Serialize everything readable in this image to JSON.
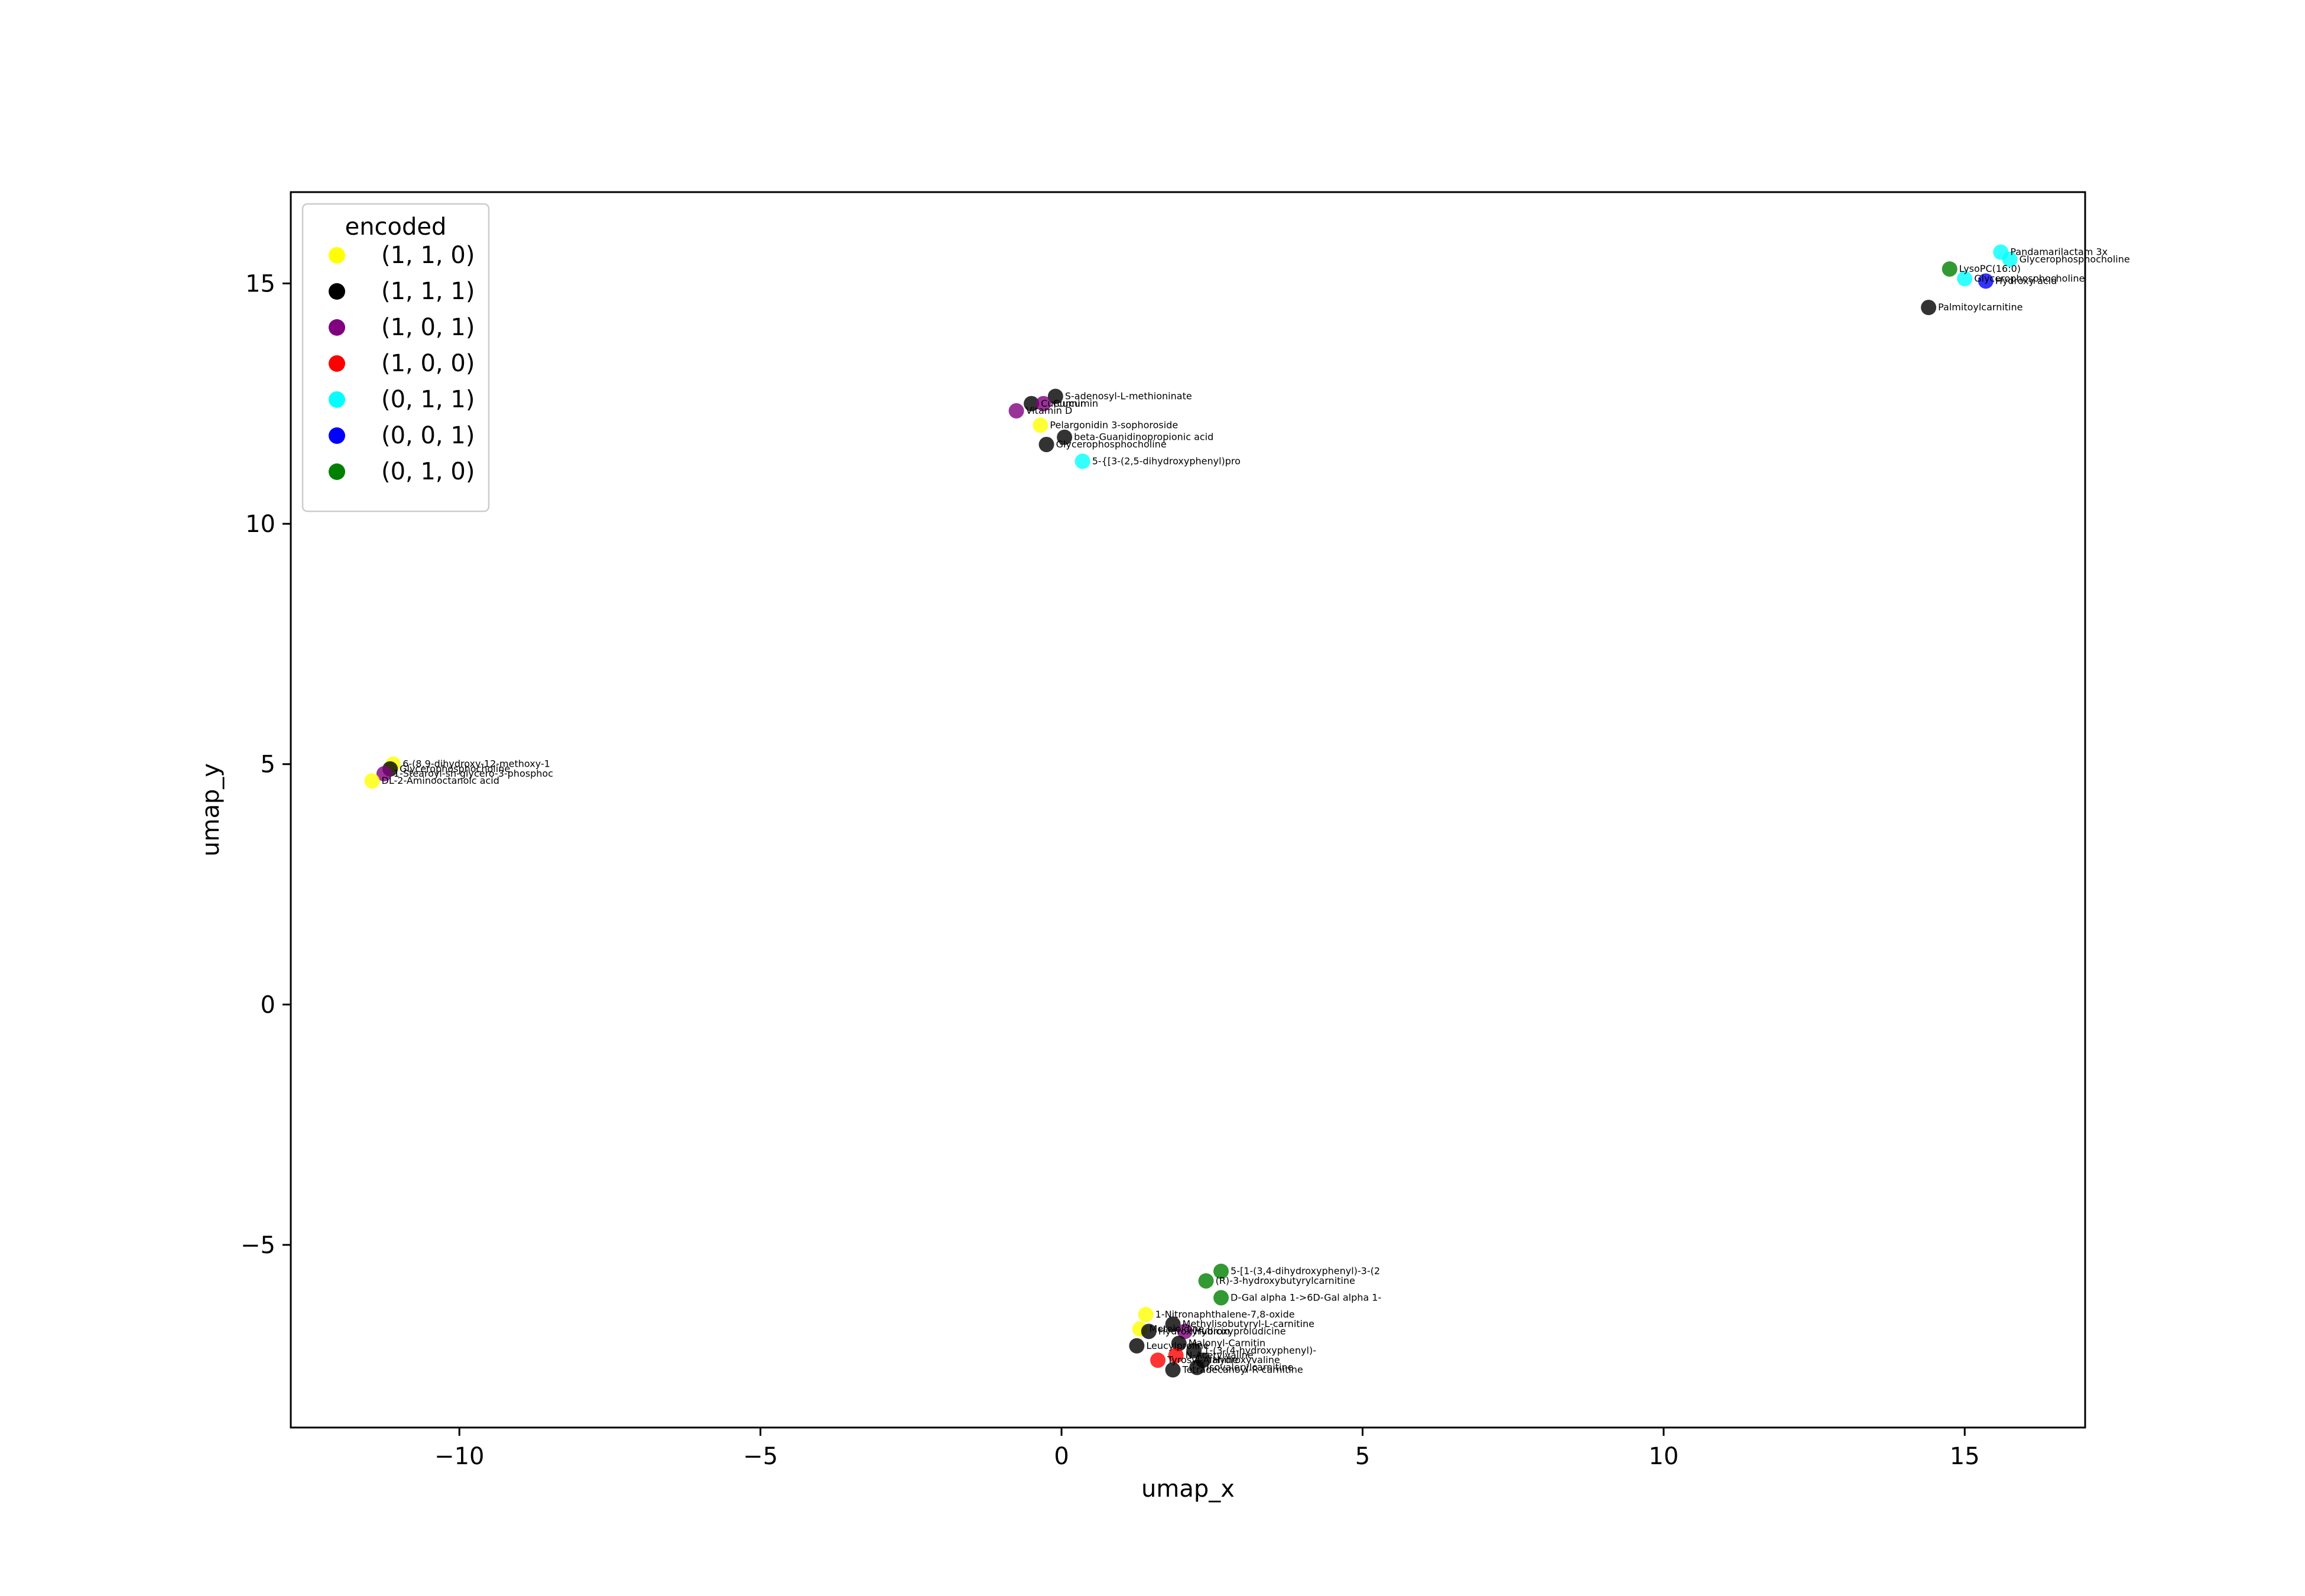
{
  "chart_data": {
    "type": "scatter",
    "title": "",
    "xlabel": "umap_x",
    "ylabel": "umap_y",
    "xlim": [
      -12.8,
      17.0
    ],
    "ylim": [
      -8.8,
      16.9
    ],
    "xticks": [
      -10,
      -5,
      0,
      5,
      10,
      15
    ],
    "yticks": [
      -5,
      0,
      5,
      10,
      15
    ],
    "xtick_labels": [
      "−10",
      "−5",
      "0",
      "5",
      "10",
      "15"
    ],
    "ytick_labels": [
      "−5",
      "0",
      "5",
      "10",
      "15"
    ],
    "grid": false,
    "legend": {
      "title": "encoded",
      "position": "top-left",
      "entries": [
        {
          "label": "(1, 1, 0)",
          "color": "#ffff00"
        },
        {
          "label": "(1, 1, 1)",
          "color": "#000000"
        },
        {
          "label": "(1, 0, 1)",
          "color": "#800080"
        },
        {
          "label": "(1, 0, 0)",
          "color": "#ff0000"
        },
        {
          "label": "(0, 1, 1)",
          "color": "#00ffff"
        },
        {
          "label": "(0, 0, 1)",
          "color": "#0000ff"
        },
        {
          "label": "(0, 1, 0)",
          "color": "#008000"
        }
      ]
    },
    "points": [
      {
        "x": 15.6,
        "y": 15.65,
        "group": "(0, 1, 1)",
        "label": "Pandamarilactam 3x"
      },
      {
        "x": 15.75,
        "y": 15.5,
        "group": "(0, 1, 1)",
        "label": "Glycerophosphocholine"
      },
      {
        "x": 14.75,
        "y": 15.3,
        "group": "(0, 1, 0)",
        "label": "LysoPC(16:0)"
      },
      {
        "x": 15.0,
        "y": 15.1,
        "group": "(0, 1, 1)",
        "label": "Glycerophosphocholine"
      },
      {
        "x": 15.35,
        "y": 15.05,
        "group": "(0, 0, 1)",
        "label": "Hydroxy acid"
      },
      {
        "x": 14.4,
        "y": 14.5,
        "group": "(1, 1, 1)",
        "label": "Palmitoylcarnitine"
      },
      {
        "x": -0.1,
        "y": 12.65,
        "group": "(1, 1, 1)",
        "label": "S-adenosyl-L-methioninate"
      },
      {
        "x": -0.5,
        "y": 12.5,
        "group": "(1, 1, 1)",
        "label": "Curcumin"
      },
      {
        "x": -0.3,
        "y": 12.5,
        "group": "(1, 0, 1)",
        "label": "Curcumin"
      },
      {
        "x": -0.75,
        "y": 12.35,
        "group": "(1, 0, 1)",
        "label": "Vitamin D"
      },
      {
        "x": -0.35,
        "y": 12.05,
        "group": "(1, 1, 0)",
        "label": "Pelargonidin 3-sophoroside"
      },
      {
        "x": 0.05,
        "y": 11.8,
        "group": "(1, 1, 1)",
        "label": "beta-Guanidinopropionic acid"
      },
      {
        "x": -0.25,
        "y": 11.65,
        "group": "(1, 1, 1)",
        "label": "Glycerophosphocholine"
      },
      {
        "x": 0.35,
        "y": 11.3,
        "group": "(0, 1, 1)",
        "label": "5-{[3-(2,5-dihydroxyphenyl)pro"
      },
      {
        "x": -11.1,
        "y": 5.0,
        "group": "(1, 1, 0)",
        "label": "6-(8,9-dihydroxy-12-methoxy-1"
      },
      {
        "x": -11.15,
        "y": 4.9,
        "group": "(1, 1, 1)",
        "label": "Glycerophosphocholine"
      },
      {
        "x": -11.25,
        "y": 4.8,
        "group": "(1, 0, 1)",
        "label": "1-Stearoyl-sn-glycero-3-phosphoc"
      },
      {
        "x": -11.45,
        "y": 4.65,
        "group": "(1, 1, 0)",
        "label": "DL-2-Aminooctanoic acid"
      },
      {
        "x": 2.65,
        "y": -5.55,
        "group": "(0, 1, 0)",
        "label": "5-[1-(3,4-dihydroxyphenyl)-3-(2"
      },
      {
        "x": 2.4,
        "y": -5.75,
        "group": "(0, 1, 0)",
        "label": "(R)-3-hydroxybutyrylcarnitine"
      },
      {
        "x": 2.65,
        "y": -6.1,
        "group": "(0, 1, 0)",
        "label": "D-Gal alpha 1->6D-Gal alpha 1-"
      },
      {
        "x": 1.4,
        "y": -6.45,
        "group": "(1, 1, 0)",
        "label": "1-Nitronaphthalene-7,8-oxide"
      },
      {
        "x": 1.85,
        "y": -6.65,
        "group": "(1, 1, 1)",
        "label": "Methylisobutyryl-L-carnitine"
      },
      {
        "x": 1.3,
        "y": -6.75,
        "group": "(1, 1, 0)",
        "label": "Meteloidine"
      },
      {
        "x": 2.05,
        "y": -6.8,
        "group": "(1, 0, 1)",
        "label": "Hydroxyproludicine"
      },
      {
        "x": 1.45,
        "y": -6.8,
        "group": "(1, 1, 1)",
        "label": "Hydroxyrubicin"
      },
      {
        "x": 1.95,
        "y": -7.05,
        "group": "(1, 1, 1)",
        "label": "Malonyl-Carnitin"
      },
      {
        "x": 1.25,
        "y": -7.1,
        "group": "(1, 1, 1)",
        "label": "Leucylproline"
      },
      {
        "x": 2.2,
        "y": -7.2,
        "group": "(1, 1, 1)",
        "label": "1-(3-(4-hydroxyphenyl)-"
      },
      {
        "x": 1.9,
        "y": -7.3,
        "group": "(1, 0, 0)",
        "label": "N-Acetylvaline"
      },
      {
        "x": 1.6,
        "y": -7.4,
        "group": "(1, 0, 0)",
        "label": "Tyrosyl-Alanine"
      },
      {
        "x": 2.35,
        "y": -7.4,
        "group": "(1, 1, 1)",
        "label": "Hydroxyvaline"
      },
      {
        "x": 2.25,
        "y": -7.55,
        "group": "(1, 1, 1)",
        "label": "Isovalerylcarnitine"
      },
      {
        "x": 1.85,
        "y": -7.6,
        "group": "(1, 1, 1)",
        "label": "Tetradecanoyl-R-carnitine"
      }
    ]
  }
}
